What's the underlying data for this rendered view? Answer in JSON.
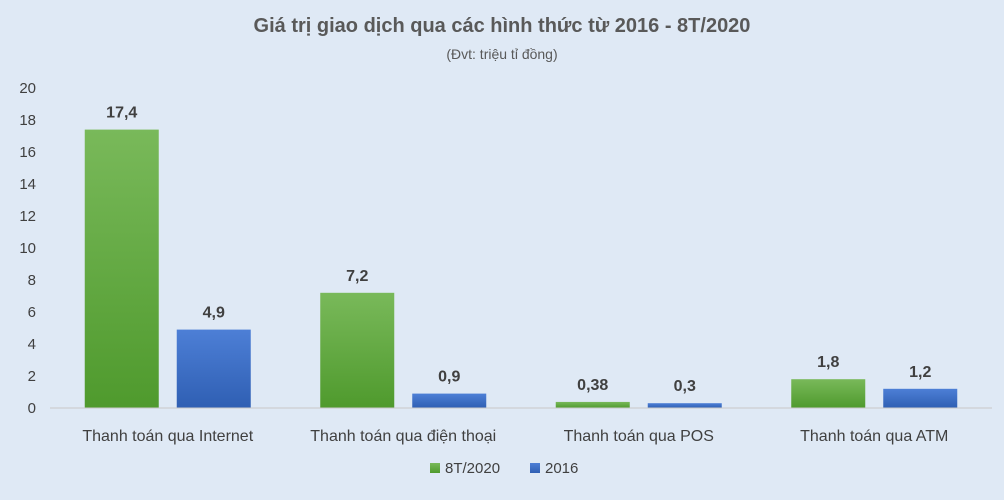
{
  "chart_data": {
    "type": "bar",
    "title": "Giá trị giao dịch qua các hình thức từ 2016 - 8T/2020",
    "subtitle": "(Đvt: triệu tỉ đồng)",
    "categories": [
      "Thanh toán qua Internet",
      "Thanh toán qua điện thoại",
      "Thanh toán qua POS",
      "Thanh toán qua ATM"
    ],
    "series": [
      {
        "name": "8T/2020",
        "values": [
          17.4,
          7.2,
          0.38,
          1.8
        ],
        "labels": [
          "17,4",
          "7,2",
          "0,38",
          "1,8"
        ],
        "color": "#5ea83a"
      },
      {
        "name": "2016",
        "values": [
          4.9,
          0.9,
          0.3,
          1.2
        ],
        "labels": [
          "4,9",
          "0,9",
          "0,3",
          "1,2"
        ],
        "color": "#3a6cc4"
      }
    ],
    "ylim": [
      0,
      20
    ],
    "yticks": [
      "0",
      "2",
      "4",
      "6",
      "8",
      "10",
      "12",
      "14",
      "16",
      "18",
      "20"
    ],
    "grid": false,
    "legend": "bottom-center"
  }
}
